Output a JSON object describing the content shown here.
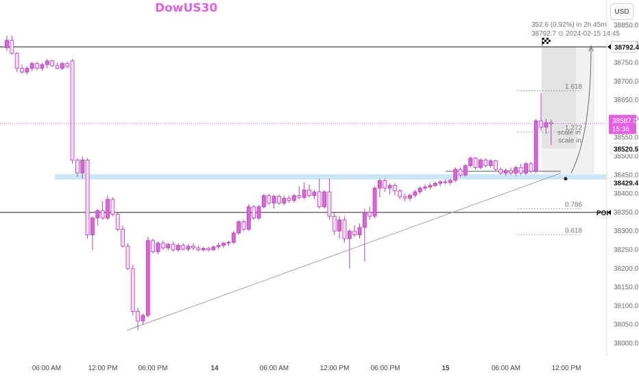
{
  "title": "DowUS30",
  "currency_button": "USD",
  "colors": {
    "candle": "#e060e0",
    "candle_border": "#b03fb0",
    "zone": "#bfe3f3",
    "trendline": "#9e9e9e",
    "line_dark": "#1b1b1b",
    "current_price_bg": "#e060e0"
  },
  "measure": {
    "headline": "352.6 (0.92%) in 2h 45m",
    "subline": "38792.7 ⊙ 2024-02-15  14:45"
  },
  "price_labels": {
    "target": "38792.4",
    "current_price": "38587.0",
    "countdown": "15:36",
    "level_b": "38520.5",
    "level_a": "38429.4",
    "poi": "POI"
  },
  "fib_labels": [
    "1.618",
    "1.272",
    "0.786",
    "0.618"
  ],
  "scale_in_labels": [
    "scale in",
    "scale in"
  ],
  "chart_data": {
    "type": "candlestick",
    "title": "DowUS30",
    "currency": "USD",
    "y_axis_ticks": [
      38850,
      38800,
      38750,
      38700,
      38650,
      38600,
      38550,
      38500,
      38450,
      38400,
      38350,
      38300,
      38250,
      38200,
      38150,
      38100,
      38050,
      38000
    ],
    "x_axis_ticks": [
      "06:00 AM",
      "12:00 PM",
      "06:00 PM",
      "14",
      "06:00 AM",
      "12:00 PM",
      "06:00 PM",
      "15",
      "06:00 AM",
      "12:00 PM"
    ],
    "ylim": [
      37975,
      38895
    ],
    "horizontal_levels": [
      {
        "label": "38792.4",
        "value": 38792.4
      },
      {
        "label": "POI",
        "value": 38350
      },
      {
        "label": "38587.0",
        "value": 38587,
        "style": "dotted-current"
      }
    ],
    "zone": {
      "from": 38438,
      "to": 38452
    },
    "candles": [
      {
        "o": 38790,
        "h": 38822,
        "l": 38782,
        "c": 38810
      },
      {
        "o": 38810,
        "h": 38822,
        "l": 38770,
        "c": 38775
      },
      {
        "o": 38775,
        "h": 38778,
        "l": 38725,
        "c": 38735
      },
      {
        "o": 38735,
        "h": 38745,
        "l": 38720,
        "c": 38725
      },
      {
        "o": 38725,
        "h": 38740,
        "l": 38718,
        "c": 38735
      },
      {
        "o": 38735,
        "h": 38752,
        "l": 38728,
        "c": 38748
      },
      {
        "o": 38748,
        "h": 38752,
        "l": 38730,
        "c": 38735
      },
      {
        "o": 38735,
        "h": 38750,
        "l": 38728,
        "c": 38745
      },
      {
        "o": 38745,
        "h": 38760,
        "l": 38735,
        "c": 38755
      },
      {
        "o": 38755,
        "h": 38758,
        "l": 38738,
        "c": 38742
      },
      {
        "o": 38742,
        "h": 38750,
        "l": 38732,
        "c": 38735
      },
      {
        "o": 38735,
        "h": 38752,
        "l": 38730,
        "c": 38748
      },
      {
        "o": 38748,
        "h": 38752,
        "l": 38735,
        "c": 38740
      },
      {
        "o": 38755,
        "h": 38760,
        "l": 38480,
        "c": 38490
      },
      {
        "o": 38490,
        "h": 38495,
        "l": 38445,
        "c": 38455
      },
      {
        "o": 38455,
        "h": 38500,
        "l": 38440,
        "c": 38490
      },
      {
        "o": 38490,
        "h": 38495,
        "l": 38280,
        "c": 38290
      },
      {
        "o": 38290,
        "h": 38340,
        "l": 38250,
        "c": 38335
      },
      {
        "o": 38335,
        "h": 38360,
        "l": 38315,
        "c": 38355
      },
      {
        "o": 38355,
        "h": 38380,
        "l": 38330,
        "c": 38335
      },
      {
        "o": 38335,
        "h": 38395,
        "l": 38330,
        "c": 38385
      },
      {
        "o": 38385,
        "h": 38390,
        "l": 38340,
        "c": 38345
      },
      {
        "o": 38345,
        "h": 38350,
        "l": 38300,
        "c": 38305
      },
      {
        "o": 38305,
        "h": 38315,
        "l": 38255,
        "c": 38260
      },
      {
        "o": 38260,
        "h": 38268,
        "l": 38195,
        "c": 38200
      },
      {
        "o": 38200,
        "h": 38210,
        "l": 38075,
        "c": 38085
      },
      {
        "o": 38085,
        "h": 38095,
        "l": 38035,
        "c": 38060
      },
      {
        "o": 38060,
        "h": 38080,
        "l": 38050,
        "c": 38075
      },
      {
        "o": 38075,
        "h": 38285,
        "l": 38070,
        "c": 38275
      },
      {
        "o": 38275,
        "h": 38280,
        "l": 38240,
        "c": 38245
      },
      {
        "o": 38245,
        "h": 38272,
        "l": 38238,
        "c": 38268
      },
      {
        "o": 38268,
        "h": 38275,
        "l": 38250,
        "c": 38255
      },
      {
        "o": 38255,
        "h": 38270,
        "l": 38248,
        "c": 38265
      },
      {
        "o": 38265,
        "h": 38272,
        "l": 38245,
        "c": 38250
      },
      {
        "o": 38250,
        "h": 38268,
        "l": 38245,
        "c": 38262
      },
      {
        "o": 38262,
        "h": 38268,
        "l": 38248,
        "c": 38252
      },
      {
        "o": 38252,
        "h": 38266,
        "l": 38246,
        "c": 38260
      },
      {
        "o": 38260,
        "h": 38268,
        "l": 38250,
        "c": 38255
      },
      {
        "o": 38255,
        "h": 38262,
        "l": 38246,
        "c": 38250
      },
      {
        "o": 38250,
        "h": 38258,
        "l": 38246,
        "c": 38254
      },
      {
        "o": 38254,
        "h": 38258,
        "l": 38245,
        "c": 38250
      },
      {
        "o": 38250,
        "h": 38262,
        "l": 38248,
        "c": 38258
      },
      {
        "o": 38258,
        "h": 38270,
        "l": 38252,
        "c": 38262
      },
      {
        "o": 38262,
        "h": 38272,
        "l": 38255,
        "c": 38268
      },
      {
        "o": 38268,
        "h": 38275,
        "l": 38260,
        "c": 38270
      },
      {
        "o": 38270,
        "h": 38300,
        "l": 38265,
        "c": 38295
      },
      {
        "o": 38295,
        "h": 38330,
        "l": 38290,
        "c": 38325
      },
      {
        "o": 38325,
        "h": 38330,
        "l": 38300,
        "c": 38305
      },
      {
        "o": 38305,
        "h": 38372,
        "l": 38300,
        "c": 38365
      },
      {
        "o": 38365,
        "h": 38370,
        "l": 38330,
        "c": 38335
      },
      {
        "o": 38335,
        "h": 38370,
        "l": 38330,
        "c": 38365
      },
      {
        "o": 38365,
        "h": 38400,
        "l": 38360,
        "c": 38395
      },
      {
        "o": 38395,
        "h": 38400,
        "l": 38370,
        "c": 38375
      },
      {
        "o": 38375,
        "h": 38398,
        "l": 38360,
        "c": 38393
      },
      {
        "o": 38393,
        "h": 38398,
        "l": 38370,
        "c": 38375
      },
      {
        "o": 38375,
        "h": 38395,
        "l": 38368,
        "c": 38388
      },
      {
        "o": 38388,
        "h": 38395,
        "l": 38375,
        "c": 38382
      },
      {
        "o": 38382,
        "h": 38400,
        "l": 38375,
        "c": 38395
      },
      {
        "o": 38395,
        "h": 38420,
        "l": 38385,
        "c": 38390
      },
      {
        "o": 38390,
        "h": 38430,
        "l": 38385,
        "c": 38410
      },
      {
        "o": 38410,
        "h": 38425,
        "l": 38390,
        "c": 38395
      },
      {
        "o": 38395,
        "h": 38410,
        "l": 38385,
        "c": 38405
      },
      {
        "o": 38405,
        "h": 38440,
        "l": 38360,
        "c": 38365
      },
      {
        "o": 38365,
        "h": 38410,
        "l": 38360,
        "c": 38405
      },
      {
        "o": 38405,
        "h": 38440,
        "l": 38330,
        "c": 38340
      },
      {
        "o": 38340,
        "h": 38350,
        "l": 38290,
        "c": 38300
      },
      {
        "o": 38300,
        "h": 38340,
        "l": 38280,
        "c": 38330
      },
      {
        "o": 38330,
        "h": 38340,
        "l": 38270,
        "c": 38280
      },
      {
        "o": 38280,
        "h": 38305,
        "l": 38200,
        "c": 38300
      },
      {
        "o": 38300,
        "h": 38315,
        "l": 38285,
        "c": 38290
      },
      {
        "o": 38290,
        "h": 38320,
        "l": 38280,
        "c": 38310
      },
      {
        "o": 38310,
        "h": 38360,
        "l": 38220,
        "c": 38350
      },
      {
        "o": 38350,
        "h": 38365,
        "l": 38330,
        "c": 38340
      },
      {
        "o": 38340,
        "h": 38420,
        "l": 38335,
        "c": 38415
      },
      {
        "o": 38415,
        "h": 38440,
        "l": 38390,
        "c": 38435
      },
      {
        "o": 38435,
        "h": 38440,
        "l": 38405,
        "c": 38415
      },
      {
        "o": 38415,
        "h": 38428,
        "l": 38398,
        "c": 38422
      },
      {
        "o": 38422,
        "h": 38428,
        "l": 38395,
        "c": 38408
      },
      {
        "o": 38408,
        "h": 38412,
        "l": 38385,
        "c": 38392
      },
      {
        "o": 38392,
        "h": 38400,
        "l": 38380,
        "c": 38388
      },
      {
        "o": 38388,
        "h": 38400,
        "l": 38380,
        "c": 38396
      },
      {
        "o": 38396,
        "h": 38410,
        "l": 38390,
        "c": 38405
      },
      {
        "o": 38405,
        "h": 38420,
        "l": 38400,
        "c": 38415
      },
      {
        "o": 38415,
        "h": 38425,
        "l": 38408,
        "c": 38418
      },
      {
        "o": 38418,
        "h": 38428,
        "l": 38412,
        "c": 38422
      },
      {
        "o": 38422,
        "h": 38432,
        "l": 38418,
        "c": 38428
      },
      {
        "o": 38428,
        "h": 38436,
        "l": 38420,
        "c": 38432
      },
      {
        "o": 38432,
        "h": 38438,
        "l": 38425,
        "c": 38430
      },
      {
        "o": 38430,
        "h": 38440,
        "l": 38424,
        "c": 38436
      },
      {
        "o": 38436,
        "h": 38470,
        "l": 38430,
        "c": 38465
      },
      {
        "o": 38465,
        "h": 38470,
        "l": 38445,
        "c": 38450
      },
      {
        "o": 38450,
        "h": 38480,
        "l": 38445,
        "c": 38475
      },
      {
        "o": 38475,
        "h": 38500,
        "l": 38470,
        "c": 38495
      },
      {
        "o": 38495,
        "h": 38498,
        "l": 38465,
        "c": 38470
      },
      {
        "o": 38470,
        "h": 38495,
        "l": 38465,
        "c": 38490
      },
      {
        "o": 38490,
        "h": 38495,
        "l": 38470,
        "c": 38475
      },
      {
        "o": 38475,
        "h": 38492,
        "l": 38470,
        "c": 38488
      },
      {
        "o": 38488,
        "h": 38490,
        "l": 38460,
        "c": 38465
      },
      {
        "o": 38465,
        "h": 38470,
        "l": 38450,
        "c": 38455
      },
      {
        "o": 38455,
        "h": 38468,
        "l": 38448,
        "c": 38462
      },
      {
        "o": 38462,
        "h": 38470,
        "l": 38450,
        "c": 38455
      },
      {
        "o": 38455,
        "h": 38475,
        "l": 38448,
        "c": 38470
      },
      {
        "o": 38470,
        "h": 38480,
        "l": 38450,
        "c": 38455
      },
      {
        "o": 38455,
        "h": 38485,
        "l": 38450,
        "c": 38480
      },
      {
        "o": 38480,
        "h": 38485,
        "l": 38455,
        "c": 38460
      },
      {
        "o": 38460,
        "h": 38600,
        "l": 38455,
        "c": 38595
      },
      {
        "o": 38595,
        "h": 38668,
        "l": 38568,
        "c": 38578
      },
      {
        "o": 38578,
        "h": 38600,
        "l": 38560,
        "c": 38590
      },
      {
        "o": 38590,
        "h": 38598,
        "l": 38530,
        "c": 38587
      }
    ]
  }
}
